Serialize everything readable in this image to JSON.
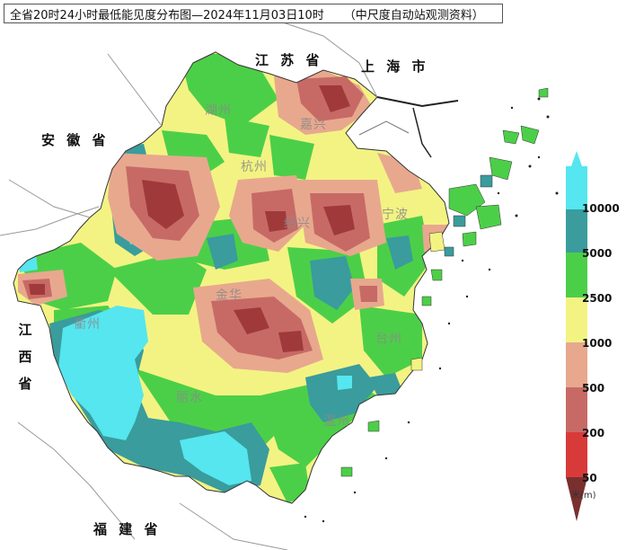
{
  "title": {
    "main": "全省20时24小时最低能见度分布图—2024年11月03日10时",
    "source": "（中尺度自动站观测资料）"
  },
  "province_labels": {
    "jiangsu": "江 苏 省",
    "shanghai": "上 海 市",
    "anhui": "安 徽 省",
    "jiangxi": [
      "江",
      "西",
      "省"
    ],
    "fujian": "福 建 省"
  },
  "city_labels": {
    "huzhou": "湖州",
    "jiaxing": "嘉兴",
    "hangzhou": "杭州",
    "shaoxing": "绍兴",
    "ningbo": "宁波",
    "jinhua": "金华",
    "quzhou": "衢州",
    "taizhou": "台州",
    "lishui": "丽水",
    "wenzhou": "温州"
  },
  "legend": {
    "labels": [
      "10000",
      "5000",
      "2500",
      "1000",
      "500",
      "200",
      "50"
    ],
    "unit": "米(m)",
    "colors": [
      "#55e6ef",
      "#3a9c9c",
      "#4ccf48",
      "#f3f383",
      "#e8a88e",
      "#c76a66",
      "#d83a3a",
      "#7a2f2f"
    ]
  },
  "colors": {
    "blue": "#55e6ef",
    "teal": "#3a9c9c",
    "green": "#4ccf48",
    "yellow": "#f3f383",
    "peach": "#e8a88e",
    "rose": "#c76a66",
    "red": "#a03a3a"
  }
}
